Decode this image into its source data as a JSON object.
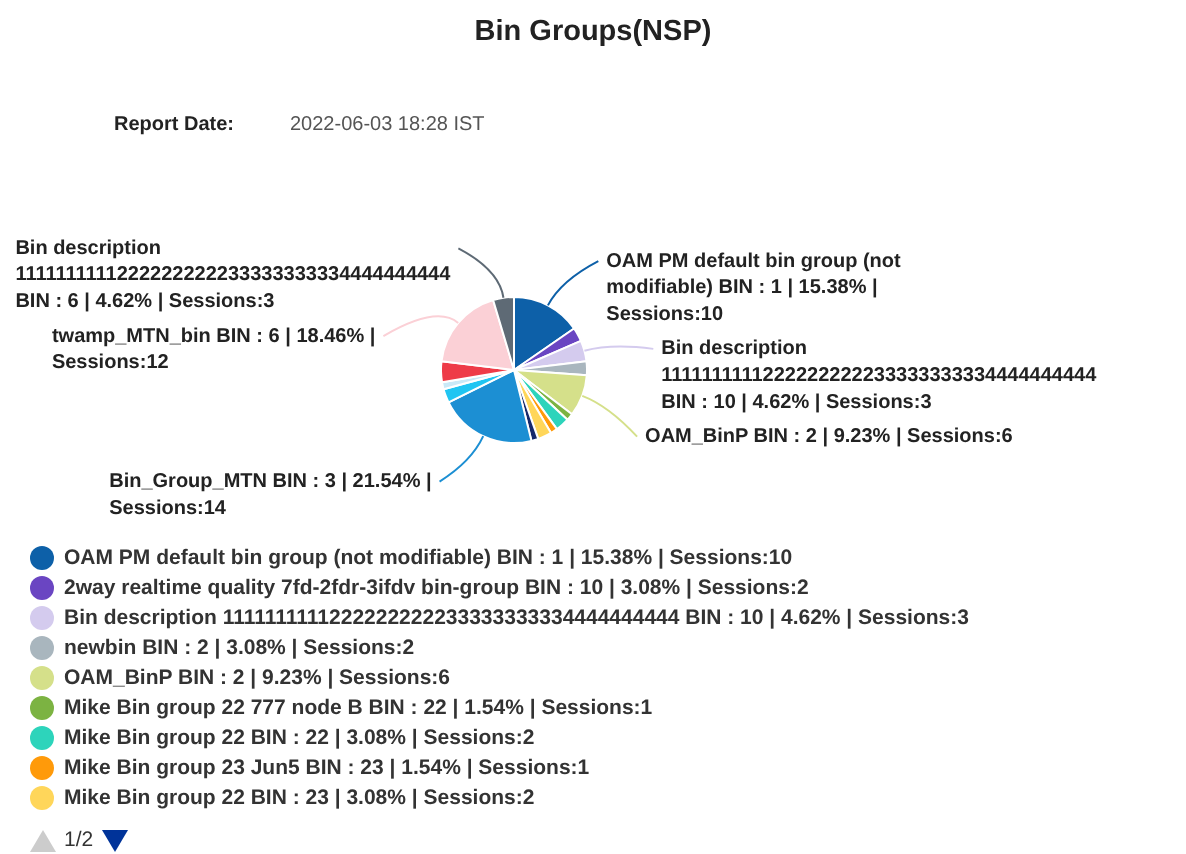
{
  "chart_data": {
    "type": "pie",
    "title": "Bin Groups(NSP)",
    "annotations": [
      "Report Date:",
      "2022-06-03 18:28 IST",
      "1/2"
    ],
    "categories": [
      "OAM PM default bin group (not modifiable) BIN : 1 | 15.38% | Sessions:10",
      "2way realtime quality 7fd-2fdr-3ifdv bin-group BIN : 10 | 3.08% | Sessions:2",
      "Bin description 1111111111222222222233333333334444444444 BIN : 10 | 4.62% | Sessions:3",
      "newbin BIN : 2 | 3.08% | Sessions:2",
      "OAM_BinP BIN : 2 | 9.23% | Sessions:6",
      "Mike Bin group 22 777 node B BIN : 22 | 1.54% | Sessions:1",
      "Mike Bin group 22 BIN : 22 | 3.08% | Sessions:2",
      "Mike Bin group 23 Jun5 BIN : 23 | 1.54% | Sessions:1",
      "Mike Bin group 22 BIN : 23 | 3.08% | Sessions:2",
      null,
      null,
      null,
      null,
      null,
      null,
      null
    ],
    "values": [
      15.38,
      3.08,
      4.62,
      3.08,
      9.23,
      1.54,
      3.08,
      1.54,
      3.08,
      1.54,
      21.54,
      3.08,
      1.54,
      4.62,
      18.46,
      4.62
    ],
    "colors": [
      "#0d60a8",
      "#6a45c2",
      "#d4cbee",
      "#a9b6be",
      "#d5e08a",
      "#7cb342",
      "#2dd4bb",
      "#ff9a0a",
      "#ffd65a",
      "#17296b",
      "#1c8fd3",
      "#20c5f2",
      "#c9e9f7",
      "#ee3b48",
      "#fbd0d6",
      "#5e6a75"
    ],
    "value_labels": [
      "OAM PM default bin group (not modifiable) BIN : 1 | 15.38% | Sessions:10",
      null,
      "Bin description 1111111111222222222233333333334444444444 BIN : 10 | 4.62% | Sessions:3",
      null,
      "OAM_BinP BIN : 2 | 9.23% | Sessions:6",
      null,
      null,
      null,
      null,
      null,
      "Bin_Group_MTN BIN : 3 | 21.54% | Sessions:14",
      null,
      null,
      null,
      "twamp_MTN_bin BIN : 6 | 18.46% | Sessions:12",
      "Bin description 1111111111222222222233333333334444444444 BIN : 6 | 4.62% | Sessions:3"
    ],
    "legend": "bottom left"
  }
}
